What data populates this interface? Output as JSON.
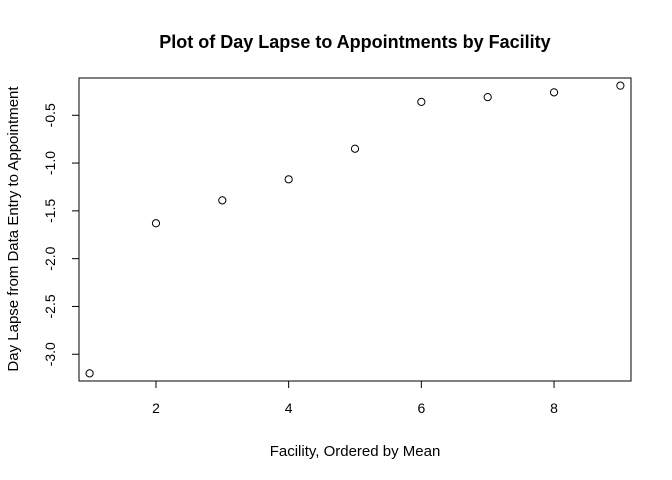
{
  "chart_data": {
    "type": "scatter",
    "title": "Plot of Day Lapse to Appointments by Facility",
    "xlabel": "Facility, Ordered by Mean",
    "ylabel": "Day Lapse from Data Entry to Appointment",
    "xlim": [
      0.84,
      9.16
    ],
    "ylim": [
      -3.28,
      -0.11
    ],
    "xticks": [
      2,
      4,
      6,
      8
    ],
    "xtick_labels": [
      "2",
      "4",
      "6",
      "8"
    ],
    "yticks": [
      -3.0,
      -2.5,
      -2.0,
      -1.5,
      -1.0,
      -0.5
    ],
    "ytick_labels": [
      "-3.0",
      "-2.5",
      "-2.0",
      "-1.5",
      "-1.0",
      "-0.5"
    ],
    "grid": false,
    "legend": "none",
    "marker": "open-circle",
    "colors": {
      "marker": "#000000",
      "axis": "#000000"
    },
    "points": [
      {
        "x": 1,
        "y": -3.2
      },
      {
        "x": 2,
        "y": -1.63
      },
      {
        "x": 3,
        "y": -1.39
      },
      {
        "x": 4,
        "y": -1.17
      },
      {
        "x": 5,
        "y": -0.85
      },
      {
        "x": 6,
        "y": -0.36
      },
      {
        "x": 7,
        "y": -0.31
      },
      {
        "x": 8,
        "y": -0.26
      },
      {
        "x": 9,
        "y": -0.19
      }
    ]
  }
}
